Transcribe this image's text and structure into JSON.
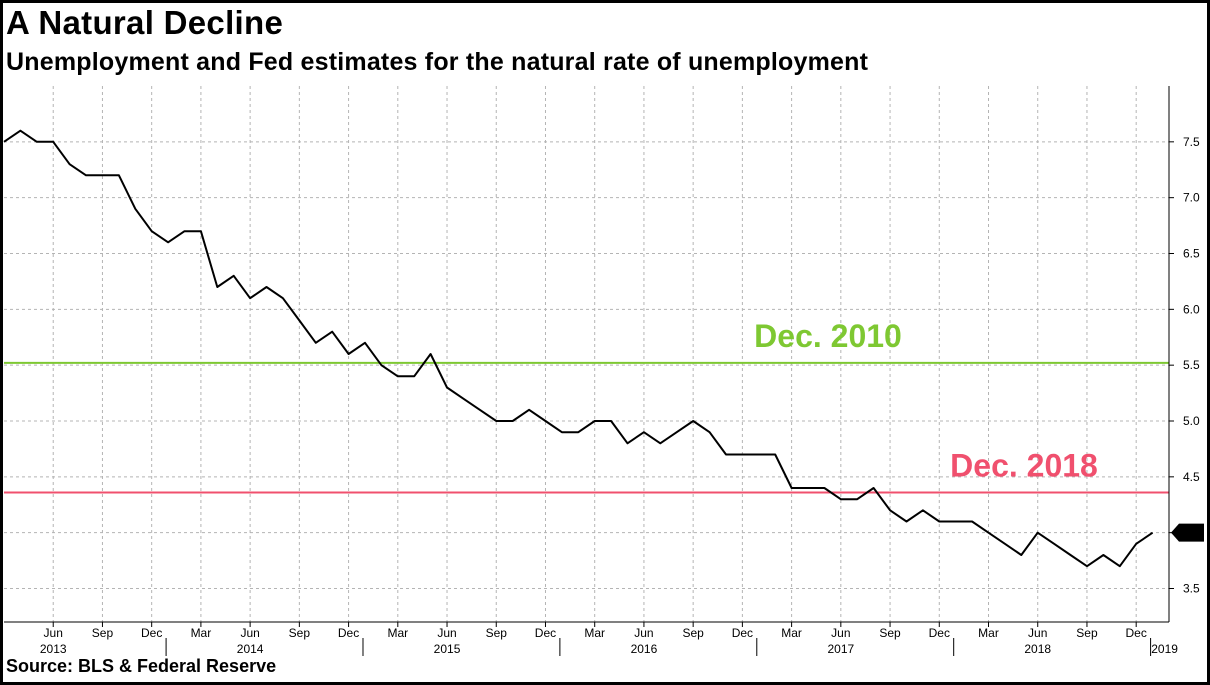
{
  "title": "A Natural Decline",
  "subtitle": "Unemployment and Fed estimates for the natural rate of unemployment",
  "source": "Source: BLS & Federal Reserve",
  "colors": {
    "unemployment": "#000000",
    "dec2010": "#7ec832",
    "dec2018": "#f0506e"
  },
  "chart_data": {
    "type": "line",
    "title": "A Natural Decline",
    "subtitle": "Unemployment and Fed estimates for the natural rate of unemployment",
    "ylim": [
      3.2,
      8.0
    ],
    "y_ticks": [
      "3.5",
      "4.0",
      "4.5",
      "5.0",
      "5.5",
      "6.0",
      "6.5",
      "7.0",
      "7.5"
    ],
    "x_range": [
      "2013-03",
      "2019-02"
    ],
    "x_month_ticks": [
      {
        "month": "2013-06",
        "label": "Jun"
      },
      {
        "month": "2013-09",
        "label": "Sep"
      },
      {
        "month": "2013-12",
        "label": "Dec"
      },
      {
        "month": "2014-03",
        "label": "Mar"
      },
      {
        "month": "2014-06",
        "label": "Jun"
      },
      {
        "month": "2014-09",
        "label": "Sep"
      },
      {
        "month": "2014-12",
        "label": "Dec"
      },
      {
        "month": "2015-03",
        "label": "Mar"
      },
      {
        "month": "2015-06",
        "label": "Jun"
      },
      {
        "month": "2015-09",
        "label": "Sep"
      },
      {
        "month": "2015-12",
        "label": "Dec"
      },
      {
        "month": "2016-03",
        "label": "Mar"
      },
      {
        "month": "2016-06",
        "label": "Jun"
      },
      {
        "month": "2016-09",
        "label": "Sep"
      },
      {
        "month": "2016-12",
        "label": "Dec"
      },
      {
        "month": "2017-03",
        "label": "Mar"
      },
      {
        "month": "2017-06",
        "label": "Jun"
      },
      {
        "month": "2017-09",
        "label": "Sep"
      },
      {
        "month": "2017-12",
        "label": "Dec"
      },
      {
        "month": "2018-03",
        "label": "Mar"
      },
      {
        "month": "2018-06",
        "label": "Jun"
      },
      {
        "month": "2018-09",
        "label": "Sep"
      },
      {
        "month": "2018-12",
        "label": "Dec"
      }
    ],
    "x_year_labels": [
      {
        "month": "2013-06",
        "label": "2013"
      },
      {
        "month": "2014-06",
        "label": "2014"
      },
      {
        "month": "2015-06",
        "label": "2015"
      },
      {
        "month": "2016-06",
        "label": "2016"
      },
      {
        "month": "2017-06",
        "label": "2017"
      },
      {
        "month": "2018-06",
        "label": "2018"
      },
      {
        "month": "2019-01",
        "label": "2019"
      }
    ],
    "series": [
      {
        "x": [
          "2013-03",
          "2013-04",
          "2013-05",
          "2013-06",
          "2013-07",
          "2013-08",
          "2013-09",
          "2013-10",
          "2013-11",
          "2013-12",
          "2014-01",
          "2014-02",
          "2014-03",
          "2014-04",
          "2014-05",
          "2014-06",
          "2014-07",
          "2014-08",
          "2014-09",
          "2014-10",
          "2014-11",
          "2014-12",
          "2015-01",
          "2015-02",
          "2015-03",
          "2015-04",
          "2015-05",
          "2015-06",
          "2015-07",
          "2015-08",
          "2015-09",
          "2015-10",
          "2015-11",
          "2015-12",
          "2016-01",
          "2016-02",
          "2016-03",
          "2016-04",
          "2016-05",
          "2016-06",
          "2016-07",
          "2016-08",
          "2016-09",
          "2016-10",
          "2016-11",
          "2016-12",
          "2017-01",
          "2017-02",
          "2017-03",
          "2017-04",
          "2017-05",
          "2017-06",
          "2017-07",
          "2017-08",
          "2017-09",
          "2017-10",
          "2017-11",
          "2017-12",
          "2018-01",
          "2018-02",
          "2018-03",
          "2018-04",
          "2018-05",
          "2018-06",
          "2018-07",
          "2018-08",
          "2018-09",
          "2018-10",
          "2018-11",
          "2018-12",
          "2019-01"
        ],
        "values": [
          7.5,
          7.6,
          7.5,
          7.5,
          7.3,
          7.2,
          7.2,
          7.2,
          6.9,
          6.7,
          6.6,
          6.7,
          6.7,
          6.2,
          6.3,
          6.1,
          6.2,
          6.1,
          5.9,
          5.7,
          5.8,
          5.6,
          5.7,
          5.5,
          5.4,
          5.4,
          5.6,
          5.3,
          5.2,
          5.1,
          5.0,
          5.0,
          5.1,
          5.0,
          4.9,
          4.9,
          5.0,
          5.0,
          4.8,
          4.9,
          4.8,
          4.9,
          5.0,
          4.9,
          4.7,
          4.7,
          4.7,
          4.7,
          4.4,
          4.4,
          4.4,
          4.3,
          4.3,
          4.4,
          4.2,
          4.1,
          4.2,
          4.1,
          4.1,
          4.1,
          4.0,
          3.9,
          3.8,
          4.0,
          3.9,
          3.8,
          3.7,
          3.8,
          3.7,
          3.9,
          4.0
        ],
        "last_value_label": "4.0"
      }
    ],
    "reference_lines": [
      {
        "label": "Dec. 2010",
        "value": 5.52
      },
      {
        "label": "Dec. 2018",
        "value": 4.36
      }
    ],
    "grid": true
  }
}
